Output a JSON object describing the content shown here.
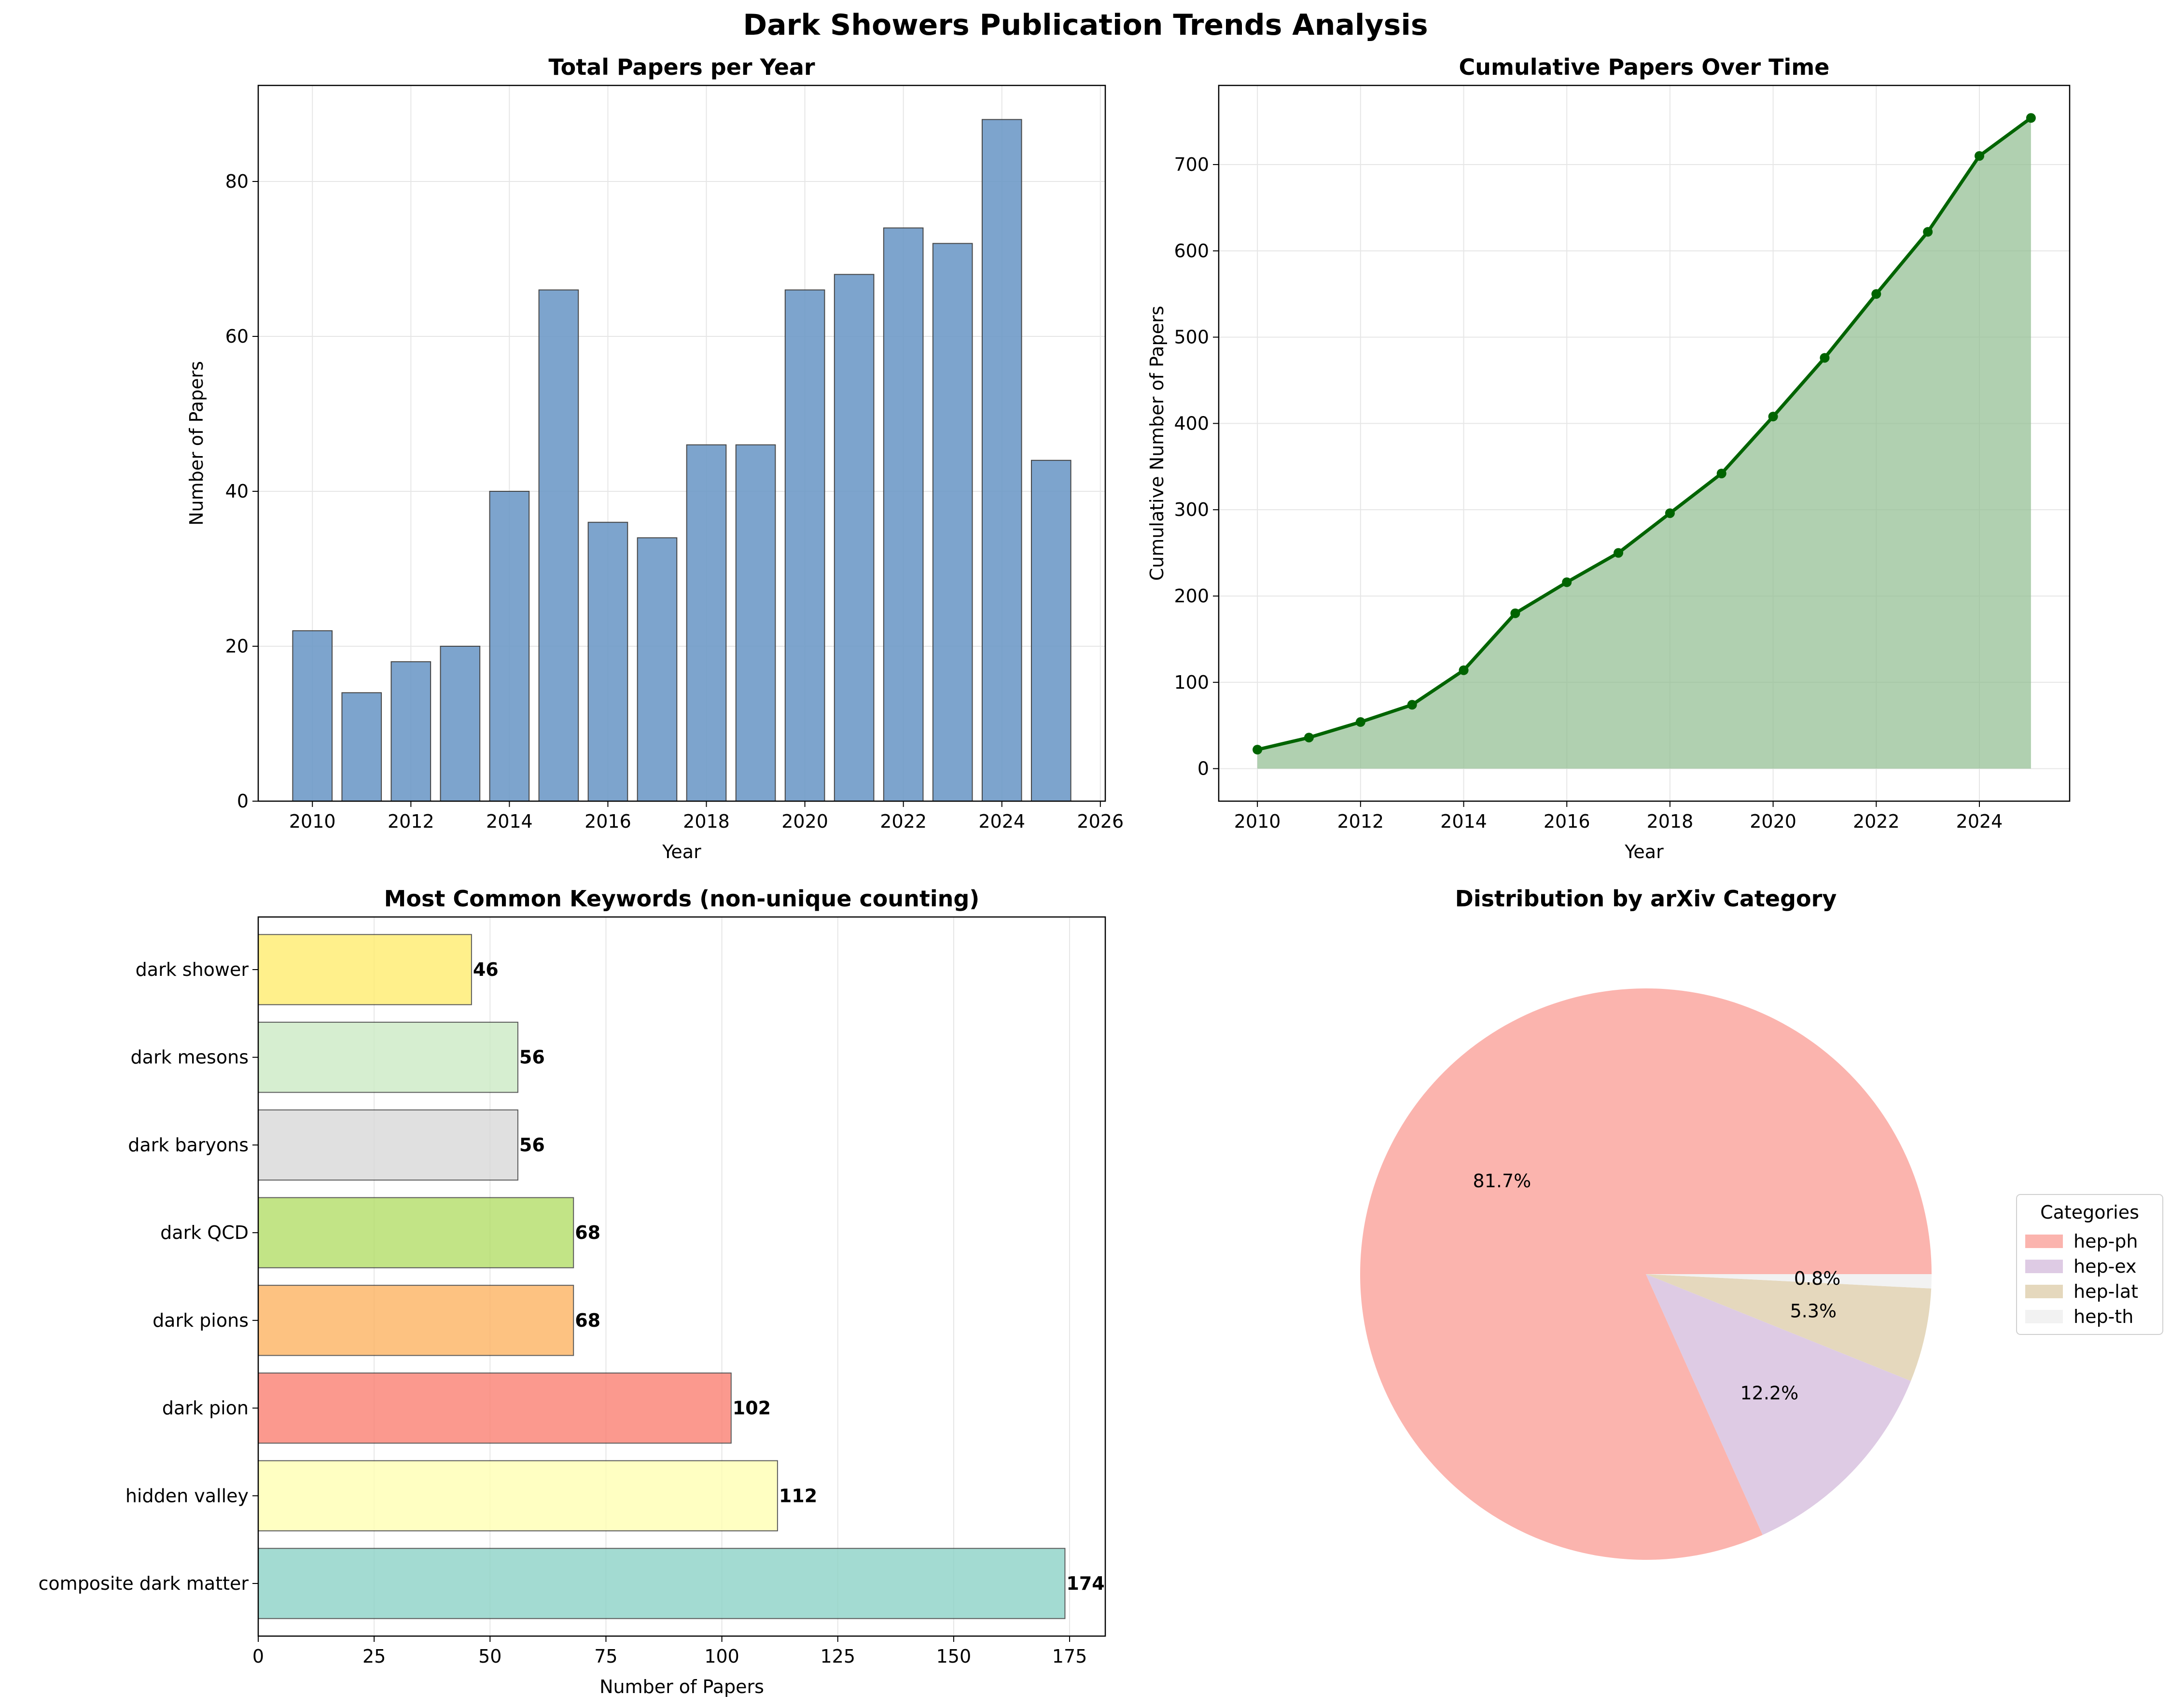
{
  "figure_title": "Dark Showers Publication Trends Analysis",
  "colors": {
    "bar": "#6f9bc8",
    "line": "#006400",
    "area": "#8fbc8f",
    "keywords": [
      "#8dd3c7",
      "#ffffb3",
      "#fb8072",
      "#fdb462",
      "#b3de69",
      "#d9d9d9",
      "#ccebc5",
      "#ffed6f"
    ],
    "pie": [
      "#fbb4ae",
      "#decbe4",
      "#e5d8bd",
      "#f2f2f2"
    ]
  },
  "chart_data": [
    {
      "type": "bar",
      "title": "Total Papers per Year",
      "xlabel": "Year",
      "ylabel": "Number of Papers",
      "x": [
        2010,
        2011,
        2012,
        2013,
        2014,
        2015,
        2016,
        2017,
        2018,
        2019,
        2020,
        2021,
        2022,
        2023,
        2024,
        2025
      ],
      "values": [
        22,
        14,
        18,
        20,
        40,
        66,
        36,
        34,
        46,
        46,
        66,
        68,
        74,
        72,
        88,
        44
      ],
      "xlim": [
        2008.9,
        2026.1
      ],
      "ylim": [
        0,
        92.4
      ],
      "xticks": [
        2010,
        2012,
        2014,
        2016,
        2018,
        2020,
        2022,
        2024,
        2026
      ],
      "yticks": [
        0,
        20,
        40,
        60,
        80
      ],
      "grid": true
    },
    {
      "type": "area",
      "title": "Cumulative Papers Over Time",
      "xlabel": "Year",
      "ylabel": "Cumulative Number of Papers",
      "x": [
        2010,
        2011,
        2012,
        2013,
        2014,
        2015,
        2016,
        2017,
        2018,
        2019,
        2020,
        2021,
        2022,
        2023,
        2024,
        2025
      ],
      "values": [
        22,
        36,
        54,
        74,
        114,
        180,
        216,
        250,
        296,
        342,
        408,
        476,
        550,
        622,
        710,
        754
      ],
      "xlim": [
        2009.25,
        2025.75
      ],
      "ylim": [
        -37.7,
        791.7
      ],
      "xticks": [
        2010,
        2012,
        2014,
        2016,
        2018,
        2020,
        2022,
        2024
      ],
      "yticks": [
        0,
        100,
        200,
        300,
        400,
        500,
        600,
        700
      ],
      "grid": true
    },
    {
      "type": "bar",
      "orientation": "horizontal",
      "title": "Most Common Keywords (non-unique counting)",
      "xlabel": "Number of Papers",
      "categories": [
        "composite dark matter",
        "hidden valley",
        "dark pion",
        "dark pions",
        "dark QCD",
        "dark baryons",
        "dark mesons",
        "dark shower"
      ],
      "values": [
        174,
        112,
        102,
        68,
        68,
        56,
        56,
        46
      ],
      "data_labels": [
        "174",
        "112",
        "102",
        "68",
        "68",
        "56",
        "56",
        "46"
      ],
      "xlim": [
        0,
        182.7
      ],
      "xticks": [
        0,
        25,
        50,
        75,
        100,
        125,
        150,
        175
      ],
      "grid": true
    },
    {
      "type": "pie",
      "title": "Distribution by arXiv Category",
      "labels": [
        "hep-ph",
        "hep-ex",
        "hep-lat",
        "hep-th"
      ],
      "values": [
        81.7,
        12.2,
        5.3,
        0.8
      ],
      "pct_labels": [
        "81.7%",
        "12.2%",
        "5.3%",
        "0.8%"
      ],
      "legend_title": "Categories",
      "legend_position": "right"
    }
  ]
}
